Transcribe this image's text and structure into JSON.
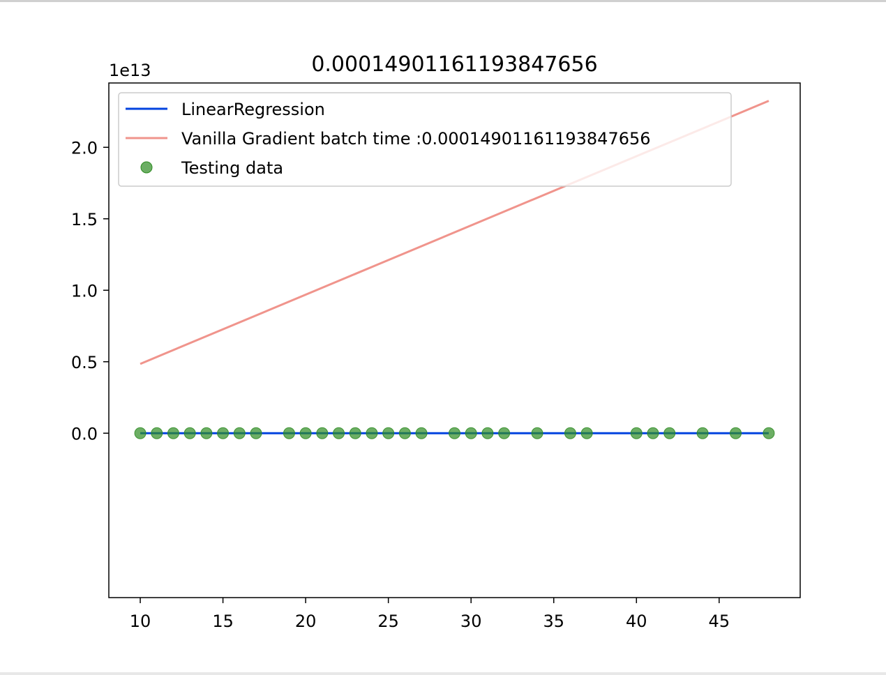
{
  "chart_data": {
    "type": "line",
    "title": "0.00014901161193847656",
    "xlabel": "",
    "ylabel": "",
    "y_offset_label": "1e13",
    "xlim": [
      8.1,
      49.9
    ],
    "ylim": [
      -1.15,
      2.45
    ],
    "y_scale_factor": 10000000000000.0,
    "x_ticks": [
      10,
      15,
      20,
      25,
      30,
      35,
      40,
      45
    ],
    "x_tick_labels": [
      "10",
      "15",
      "20",
      "25",
      "30",
      "35",
      "40",
      "45"
    ],
    "y_ticks": [
      0.0,
      0.5,
      1.0,
      1.5,
      2.0
    ],
    "y_tick_labels": [
      "0.0",
      "0.5",
      "1.0",
      "1.5",
      "2.0"
    ],
    "grid": false,
    "legend_position": "upper-left",
    "series": [
      {
        "name": "LinearRegression",
        "kind": "line",
        "color": "#0343df",
        "x": [
          10,
          48
        ],
        "y": [
          0.0,
          0.0
        ]
      },
      {
        "name": "Vanilla Gradient batch time :0.00014901161193847656",
        "kind": "line",
        "color": "#f0948c",
        "x": [
          10,
          48
        ],
        "y": [
          0.485,
          2.325
        ]
      },
      {
        "name": "Testing data",
        "kind": "scatter",
        "color": "#2e8b22",
        "x": [
          10,
          11,
          12,
          13,
          14,
          15,
          16,
          17,
          19,
          20,
          21,
          22,
          23,
          24,
          25,
          26,
          27,
          29,
          30,
          31,
          32,
          34,
          36,
          37,
          40,
          41,
          42,
          44,
          46,
          48
        ],
        "y": [
          0,
          0,
          0,
          0,
          0,
          0,
          0,
          0,
          0,
          0,
          0,
          0,
          0,
          0,
          0,
          0,
          0,
          0,
          0,
          0,
          0,
          0,
          0,
          0,
          0,
          0,
          0,
          0,
          0,
          0
        ]
      }
    ]
  }
}
